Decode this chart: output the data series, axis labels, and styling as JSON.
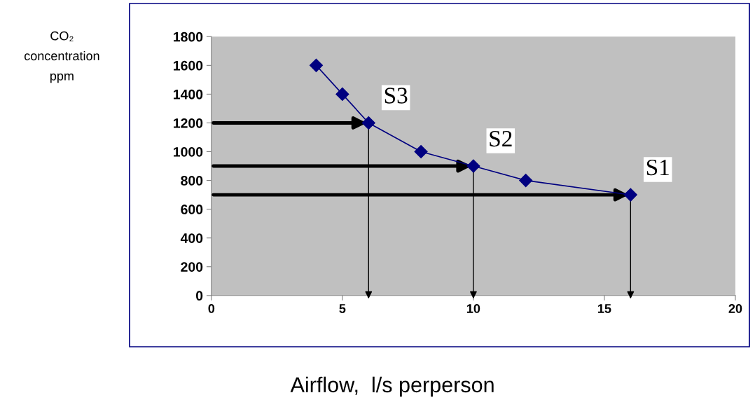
{
  "chart_data": {
    "type": "line",
    "xlabel": "Airflow,  l/s perperson",
    "x": [
      4,
      5,
      6,
      8,
      10,
      12,
      16
    ],
    "series": [
      {
        "color": "#000080",
        "values": [
          1600,
          1400,
          1200,
          1000,
          900,
          800,
          700
        ]
      }
    ],
    "marker": "diamond",
    "line_style": "solid",
    "grid": false,
    "legend": false,
    "xlim": [
      0,
      20
    ],
    "xticks": [
      0,
      5,
      10,
      15,
      20
    ],
    "ylim": [
      0,
      1800
    ],
    "yticks": [
      0,
      200,
      400,
      600,
      800,
      1000,
      1200,
      1400,
      1600,
      1800
    ],
    "annotations": [
      "CO₂\nconcentration\nppm",
      {
        "text": "S3",
        "x": 6,
        "y": 1200
      },
      {
        "text": "S2",
        "x": 10,
        "y": 900
      },
      {
        "text": "S1",
        "x": 16,
        "y": 700
      }
    ]
  }
}
